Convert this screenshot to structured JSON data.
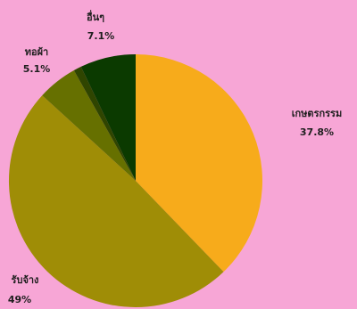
{
  "chart_data": {
    "type": "pie",
    "title": "",
    "slices": [
      {
        "label": "เกษตรกรรม",
        "pct_text": "37.8%",
        "value": 37.8,
        "color": "#f7ab1b"
      },
      {
        "label": "รับจ้าง",
        "pct_text": "49%",
        "value": 49.0,
        "color": "#9f8d06"
      },
      {
        "label": "ทอผ้า",
        "pct_text": "5.1%",
        "value": 5.1,
        "color": "#667000"
      },
      {
        "label": "",
        "pct_text": "",
        "value": 1.0,
        "color": "#2f4500"
      },
      {
        "label": "อื่นๆ",
        "pct_text": "7.1%",
        "value": 7.1,
        "color": "#0b3a00"
      }
    ]
  }
}
